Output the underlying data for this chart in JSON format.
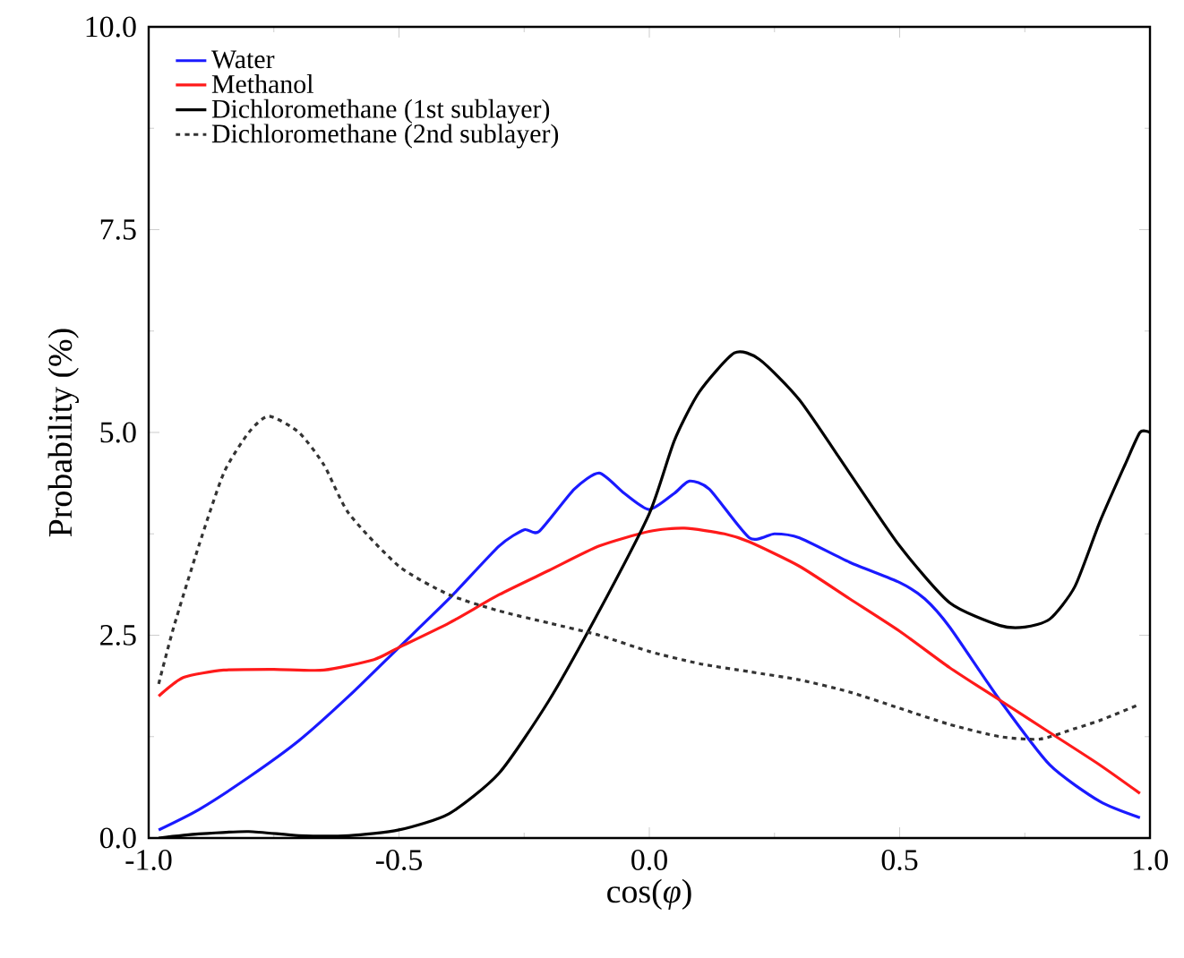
{
  "chart_data": {
    "type": "line",
    "xlabel": "cos(*φ*)",
    "ylabel": "Probability (%)",
    "xlim": [
      -1.0,
      1.0
    ],
    "ylim": [
      0.0,
      10.0
    ],
    "xticks": [
      {
        "value": -1.0,
        "label": "-1.0"
      },
      {
        "value": -0.5,
        "label": "-0.5"
      },
      {
        "value": 0.0,
        "label": "0.0"
      },
      {
        "value": 0.5,
        "label": "0.5"
      },
      {
        "value": 1.0,
        "label": "1.0"
      }
    ],
    "yticks": [
      {
        "value": 0.0,
        "label": "0.0"
      },
      {
        "value": 2.5,
        "label": "2.5"
      },
      {
        "value": 5.0,
        "label": "5.0"
      },
      {
        "value": 7.5,
        "label": "7.5"
      },
      {
        "value": 10.0,
        "label": "10.0"
      }
    ],
    "grid": false,
    "legend": "top left",
    "series": [
      {
        "name": "Water",
        "color": "#1a1aff",
        "line_style": "solid",
        "x": [
          -0.98,
          -0.9,
          -0.8,
          -0.7,
          -0.6,
          -0.5,
          -0.4,
          -0.3,
          -0.25,
          -0.22,
          -0.15,
          -0.1,
          -0.05,
          0.0,
          0.05,
          0.08,
          0.12,
          0.2,
          0.25,
          0.3,
          0.4,
          0.5,
          0.55,
          0.6,
          0.7,
          0.8,
          0.9,
          0.98
        ],
        "values": [
          0.1,
          0.35,
          0.75,
          1.2,
          1.75,
          2.35,
          2.95,
          3.6,
          3.8,
          3.78,
          4.3,
          4.5,
          4.25,
          4.05,
          4.25,
          4.4,
          4.3,
          3.7,
          3.75,
          3.7,
          3.4,
          3.15,
          2.95,
          2.6,
          1.7,
          0.9,
          0.45,
          0.25
        ]
      },
      {
        "name": "Methanol",
        "color": "#ff1a1a",
        "line_style": "solid",
        "x": [
          -0.98,
          -0.93,
          -0.85,
          -0.75,
          -0.65,
          -0.55,
          -0.5,
          -0.4,
          -0.3,
          -0.2,
          -0.1,
          0.0,
          0.07,
          0.15,
          0.2,
          0.3,
          0.4,
          0.5,
          0.6,
          0.7,
          0.8,
          0.9,
          0.98
        ],
        "values": [
          1.75,
          1.98,
          2.07,
          2.08,
          2.07,
          2.2,
          2.35,
          2.65,
          3.0,
          3.3,
          3.6,
          3.78,
          3.82,
          3.75,
          3.65,
          3.35,
          2.95,
          2.55,
          2.1,
          1.7,
          1.3,
          0.9,
          0.55
        ]
      },
      {
        "name": "Dichloromethane (1st sublayer)",
        "color": "#000000",
        "line_style": "solid",
        "x": [
          -0.98,
          -0.9,
          -0.8,
          -0.7,
          -0.6,
          -0.5,
          -0.4,
          -0.3,
          -0.2,
          -0.1,
          0.0,
          0.05,
          0.1,
          0.17,
          0.22,
          0.3,
          0.4,
          0.5,
          0.6,
          0.7,
          0.75,
          0.8,
          0.85,
          0.9,
          0.95,
          0.98,
          1.0
        ],
        "values": [
          0.0,
          0.05,
          0.08,
          0.03,
          0.03,
          0.1,
          0.3,
          0.8,
          1.7,
          2.8,
          4.0,
          4.9,
          5.5,
          5.98,
          5.9,
          5.4,
          4.5,
          3.6,
          2.9,
          2.62,
          2.6,
          2.7,
          3.1,
          3.9,
          4.6,
          5.0,
          5.0
        ]
      },
      {
        "name": "Dichloromethane (2nd sublayer)",
        "color": "#333333",
        "line_style": "dotted",
        "x": [
          -0.98,
          -0.95,
          -0.9,
          -0.85,
          -0.8,
          -0.76,
          -0.7,
          -0.65,
          -0.6,
          -0.5,
          -0.4,
          -0.3,
          -0.2,
          -0.1,
          0.0,
          0.1,
          0.2,
          0.3,
          0.4,
          0.5,
          0.6,
          0.7,
          0.78,
          0.85,
          0.9,
          0.98
        ],
        "values": [
          1.9,
          2.6,
          3.6,
          4.5,
          5.0,
          5.2,
          5.0,
          4.6,
          4.0,
          3.35,
          3.0,
          2.8,
          2.65,
          2.5,
          2.3,
          2.15,
          2.05,
          1.95,
          1.8,
          1.6,
          1.4,
          1.25,
          1.22,
          1.35,
          1.45,
          1.65
        ]
      }
    ]
  }
}
